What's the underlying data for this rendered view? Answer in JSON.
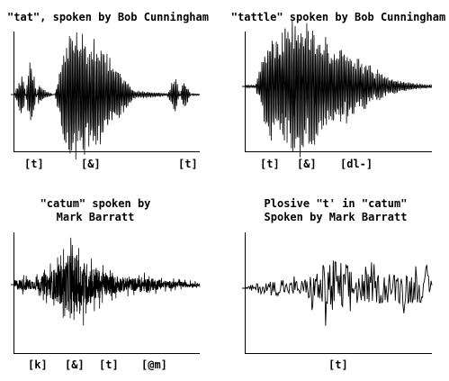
{
  "chart_data": [
    {
      "type": "line",
      "title": "\"tat\", spoken by Bob Cunningham",
      "segment_labels": [
        "[t]",
        "[&]",
        "[t]"
      ],
      "series": [
        {
          "values": [
            0.0,
            0.4,
            -0.6,
            0.15,
            0.05,
            0.0,
            0.6,
            1.0,
            0.95,
            0.9,
            0.85,
            0.7,
            0.55,
            0.4,
            0.2,
            0.06,
            0.05,
            0.04,
            0.03,
            0.02,
            0.3,
            -0.25,
            0.02,
            0.01
          ]
        }
      ]
    },
    {
      "type": "line",
      "title": "\"tattle\" spoken by Bob Cunningham",
      "segment_labels": [
        "[t]",
        "[&]",
        "[dl-]"
      ],
      "series": [
        {
          "values": [
            0.02,
            0.02,
            0.6,
            0.8,
            0.9,
            1.0,
            0.95,
            0.85,
            0.7,
            0.55,
            0.5,
            0.45,
            0.35,
            0.25,
            0.18,
            0.12,
            0.08,
            0.05,
            0.03,
            0.02
          ]
        }
      ]
    },
    {
      "type": "line",
      "title": "\"catum\" spoken by\nMark Barratt",
      "segment_labels": [
        "[k]",
        "[&]",
        "[t]",
        "[@m]"
      ],
      "series": [
        {
          "values": [
            0.15,
            0.2,
            0.15,
            0.3,
            0.5,
            0.7,
            1.0,
            0.8,
            0.6,
            0.4,
            0.3,
            0.25,
            0.2,
            0.25,
            0.2,
            0.15,
            0.12,
            0.1,
            0.08,
            0.05
          ]
        }
      ]
    },
    {
      "type": "line",
      "title": "Plosive \"t' in \"catum\"\nSpoken by Mark Barratt",
      "segment_labels": [
        "[t]"
      ],
      "series": [
        {
          "values": [
            0.05,
            0.15,
            0.2,
            0.25,
            0.2,
            0.25,
            0.3,
            0.5,
            0.8,
            1.0,
            0.85,
            0.6,
            0.5,
            0.45,
            0.5,
            0.45,
            0.55,
            0.5,
            0.45,
            0.4
          ]
        }
      ]
    }
  ]
}
